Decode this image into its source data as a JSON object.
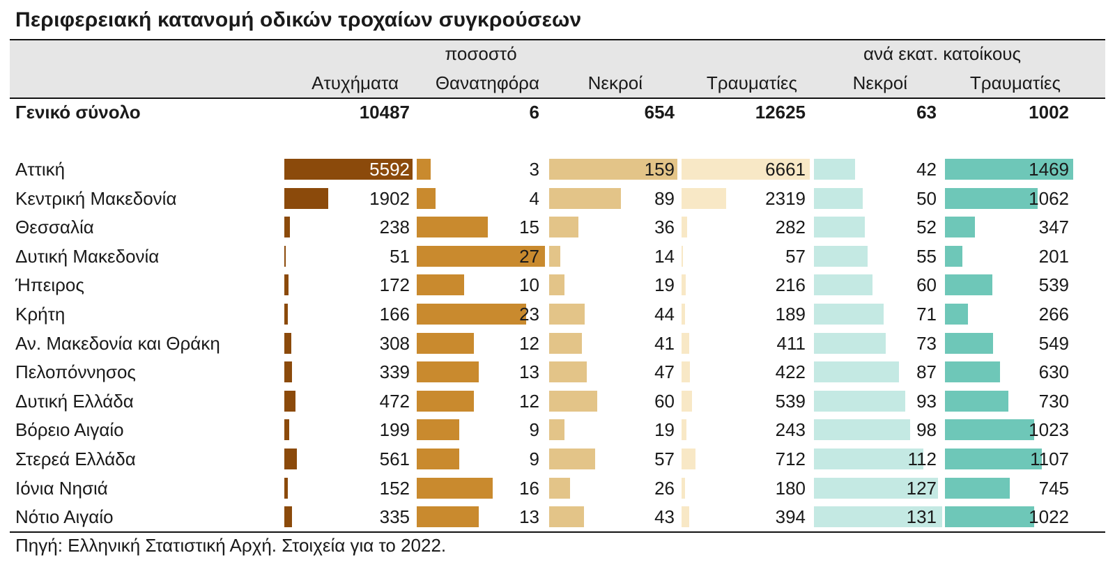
{
  "title": "Περιφερειακή κατανομή οδικών τροχαίων συγκρούσεων",
  "group_headers": {
    "percent": "ποσοστό",
    "per_million": "ανά εκατ. κατοίκους"
  },
  "columns": [
    "Ατυχήματα",
    "Θανατηφόρα",
    "Νεκροί",
    "Τραυματίες",
    "Νεκροί",
    "Τραυματίες"
  ],
  "total": {
    "label": "Γενικό σύνολο",
    "values": [
      "10487",
      "6",
      "654",
      "12625",
      "63",
      "1002"
    ]
  },
  "source": "Πηγή: Ελληνική Στατιστική Αρχή. Στοιχεία για το 2022.",
  "colors": {
    "accidents": "#8b4a0b",
    "fatal_pct": "#c98a2e",
    "deaths": "#e3c488",
    "injured": "#f8e8c6",
    "deaths_per_million": "#c4e9e3",
    "injured_per_million": "#6ec7b8",
    "header_band": "#e6e6e6"
  },
  "chart_data": {
    "type": "bar",
    "categories": [
      "Αττική",
      "Κεντρική Μακεδονία",
      "Θεσσαλία",
      "Δυτική Μακεδονία",
      "Ήπειρος",
      "Κρήτη",
      "Αν. Μακεδονία και Θράκη",
      "Πελοπόννησος",
      "Δυτική Ελλάδα",
      "Βόρειο Αιγαίο",
      "Στερεά Ελλάδα",
      "Ιόνια Νησιά",
      "Νότιο Αιγαίο"
    ],
    "series": [
      {
        "name": "Ατυχήματα",
        "values": [
          5592,
          1902,
          238,
          51,
          172,
          166,
          308,
          339,
          472,
          199,
          561,
          152,
          335
        ]
      },
      {
        "name": "Θανατηφόρα",
        "values": [
          3,
          4,
          15,
          27,
          10,
          23,
          12,
          13,
          12,
          9,
          9,
          16,
          13
        ]
      },
      {
        "name": "Νεκροί",
        "values": [
          159,
          89,
          36,
          14,
          19,
          44,
          41,
          47,
          60,
          19,
          57,
          26,
          43
        ]
      },
      {
        "name": "Τραυματίες",
        "values": [
          6661,
          2319,
          282,
          57,
          216,
          189,
          411,
          422,
          539,
          243,
          712,
          180,
          394
        ]
      },
      {
        "name": "Νεκροί",
        "values": [
          42,
          50,
          52,
          55,
          60,
          71,
          73,
          87,
          93,
          98,
          112,
          127,
          131
        ]
      },
      {
        "name": "Τραυματίες",
        "values": [
          1469,
          1062,
          347,
          201,
          539,
          266,
          549,
          630,
          730,
          1023,
          1107,
          745,
          1022
        ]
      }
    ]
  }
}
